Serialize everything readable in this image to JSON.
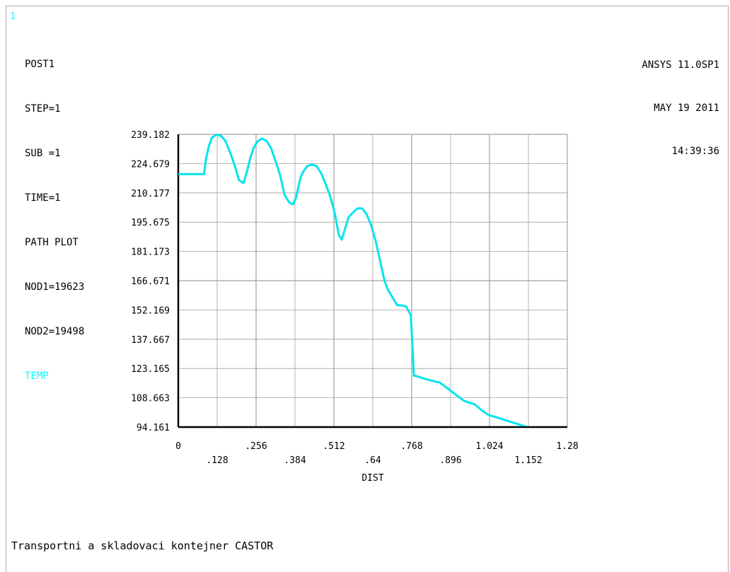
{
  "window_number": "1",
  "info": {
    "module": "POST1",
    "step": "STEP=1",
    "sub": "SUB =1",
    "time": "TIME=1",
    "plot_type": "PATH PLOT",
    "node1": "NOD1=19623",
    "node2": "NOD2=19498",
    "item": "TEMP"
  },
  "version": {
    "product": "ANSYS 11.0SP1",
    "date": "MAY 19 2011",
    "time": "14:39:36"
  },
  "footer_title": "Transportni a skladovaci kontejner CASTOR",
  "colors": {
    "curve": "#00e5ee",
    "label_accent": "#00ffff",
    "grid": "#a0a0a0",
    "axis": "#000000"
  },
  "chart_data": {
    "type": "line",
    "xlabel": "DIST",
    "ylabel": "",
    "xlim": [
      0,
      1.28
    ],
    "ylim": [
      94.161,
      239.182
    ],
    "x_ticks": [
      0,
      0.128,
      0.256,
      0.384,
      0.512,
      0.64,
      0.768,
      0.896,
      1.024,
      1.152,
      1.28
    ],
    "x_tick_labels": [
      "0",
      ".128",
      ".256",
      ".384",
      ".512",
      ".64",
      ".768",
      ".896",
      "1.024",
      "1.152",
      "1.28"
    ],
    "y_ticks": [
      94.161,
      108.663,
      123.165,
      137.667,
      152.169,
      166.671,
      181.173,
      195.675,
      210.177,
      224.679,
      239.182
    ],
    "y_tick_labels": [
      "94.161",
      "108.663",
      "123.165",
      "137.667",
      "152.169",
      "166.671",
      "181.173",
      "195.675",
      "210.177",
      "224.679",
      "239.182"
    ],
    "grid": true,
    "series": [
      {
        "name": "TEMP",
        "x": [
          0,
          0.085,
          0.09,
          0.1,
          0.11,
          0.125,
          0.14,
          0.155,
          0.17,
          0.185,
          0.2,
          0.215,
          0.228,
          0.238,
          0.248,
          0.26,
          0.275,
          0.29,
          0.305,
          0.32,
          0.335,
          0.35,
          0.365,
          0.378,
          0.388,
          0.395,
          0.402,
          0.41,
          0.425,
          0.44,
          0.455,
          0.47,
          0.485,
          0.5,
          0.515,
          0.528,
          0.538,
          0.548,
          0.56,
          0.575,
          0.59,
          0.605,
          0.62,
          0.635,
          0.65,
          0.665,
          0.678,
          0.688,
          0.69,
          0.705,
          0.72,
          0.735,
          0.75,
          0.765,
          0.772,
          0.775,
          0.78,
          0.81,
          0.85,
          0.86,
          0.94,
          0.975,
          1.0,
          1.02,
          1.06,
          1.1,
          1.15,
          1.2,
          1.28
        ],
        "y": [
          219.5,
          219.5,
          226,
          233,
          237.5,
          239.0,
          238.5,
          236,
          230.5,
          224,
          216.5,
          215,
          222,
          228,
          232.5,
          235.5,
          237.1,
          236,
          232.5,
          226,
          219,
          209,
          205.5,
          204.5,
          208,
          213,
          217.5,
          220.5,
          223.5,
          224.2,
          223.5,
          220,
          214.5,
          208.5,
          200,
          189.5,
          187,
          192,
          198,
          200.5,
          202.5,
          202.5,
          199.5,
          194,
          186,
          176,
          167,
          162.8,
          162.3,
          158.3,
          154.6,
          154.4,
          153.9,
          149.5,
          130.5,
          119.6,
          119.6,
          118.1,
          116.5,
          116.3,
          107.2,
          105.4,
          102.3,
          100.2,
          98.4,
          96.4,
          94.161,
          93.6,
          91.6
        ]
      }
    ]
  }
}
